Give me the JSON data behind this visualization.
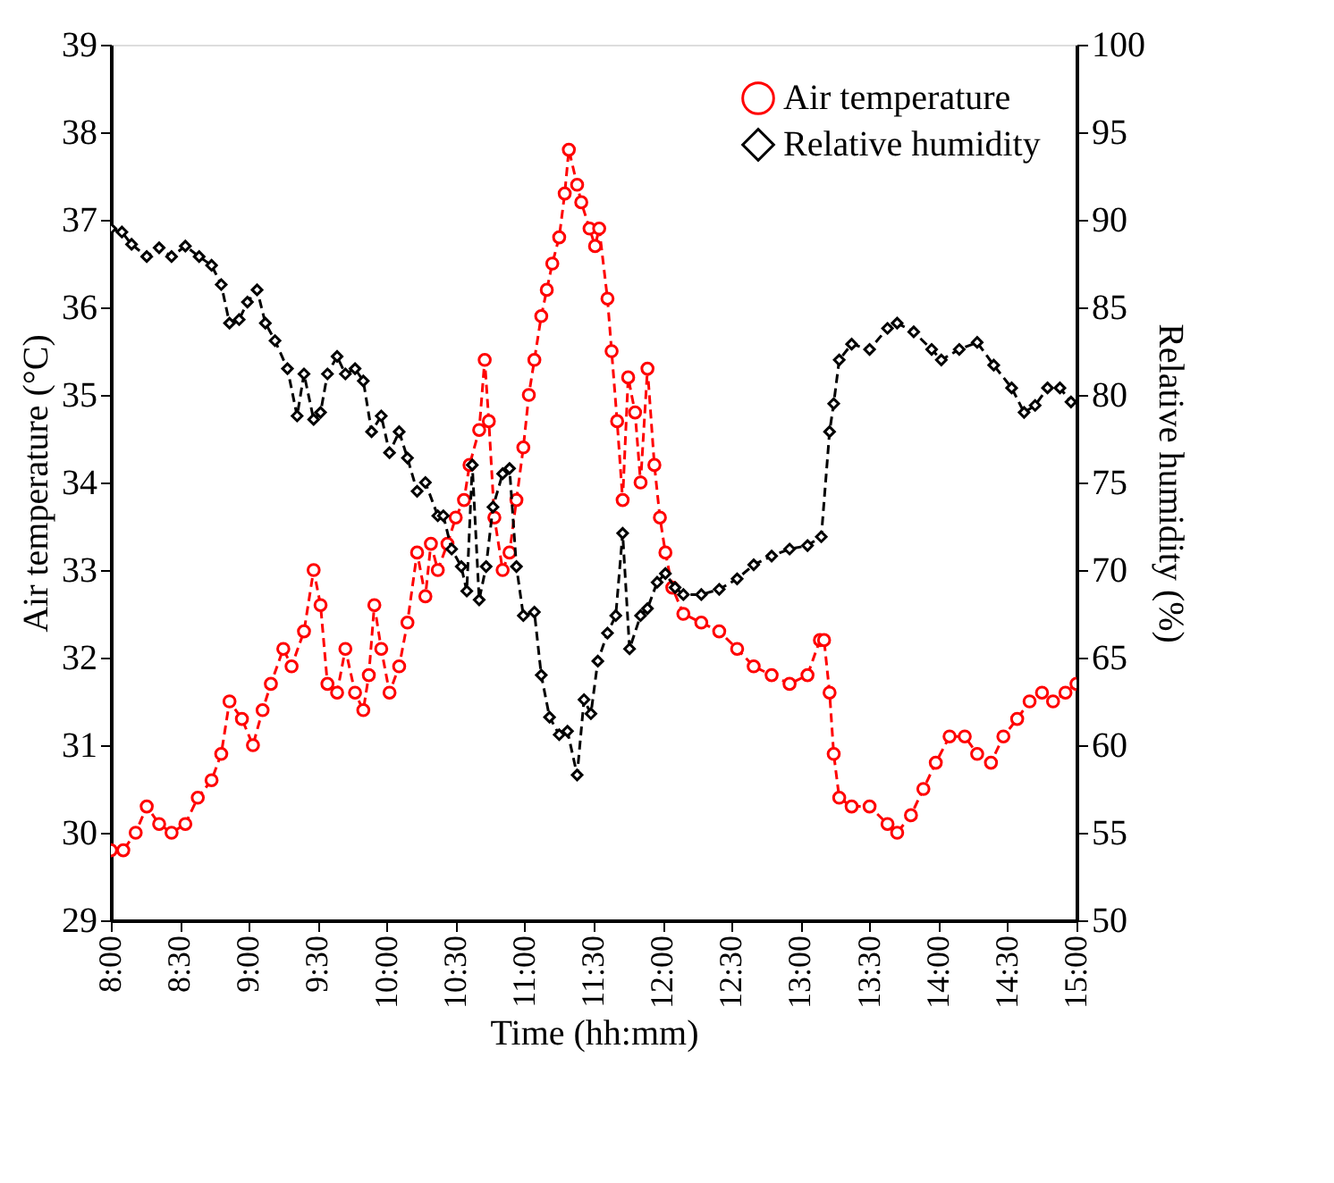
{
  "chart_data": {
    "type": "line",
    "xlabel": "Time (hh:mm)",
    "ylabel": "Air temperature (°C)",
    "y2label": "Relative humidity (%)",
    "xlim": [
      8,
      15
    ],
    "xticks": [
      {
        "value": 8,
        "label": "8:00"
      },
      {
        "value": 8.5,
        "label": "8:30"
      },
      {
        "value": 9,
        "label": "9:00"
      },
      {
        "value": 9.5,
        "label": "9:30"
      },
      {
        "value": 10,
        "label": "10:00"
      },
      {
        "value": 10.5,
        "label": "10:30"
      },
      {
        "value": 11,
        "label": "11:00"
      },
      {
        "value": 11.5,
        "label": "11:30"
      },
      {
        "value": 12,
        "label": "12:00"
      },
      {
        "value": 12.5,
        "label": "12:30"
      },
      {
        "value": 13,
        "label": "13:00"
      },
      {
        "value": 13.5,
        "label": "13:30"
      },
      {
        "value": 14,
        "label": "14:00"
      },
      {
        "value": 14.5,
        "label": "14:30"
      },
      {
        "value": 15,
        "label": "15:00"
      }
    ],
    "ylim": [
      29,
      39
    ],
    "yticks": [
      29,
      30,
      31,
      32,
      33,
      34,
      35,
      36,
      37,
      38,
      39
    ],
    "y2lim": [
      50,
      100
    ],
    "y2ticks": [
      50,
      55,
      60,
      65,
      70,
      75,
      80,
      85,
      90,
      95,
      100
    ],
    "grid": false,
    "legend": "top right",
    "line_style": "dashed",
    "series": [
      {
        "name": "Air temperature",
        "color": "#ff0000",
        "marker": "circle",
        "axis": "y",
        "x": [
          8.0,
          8.09,
          8.18,
          8.26,
          8.35,
          8.44,
          8.54,
          8.63,
          8.73,
          8.8,
          8.86,
          8.95,
          9.03,
          9.1,
          9.16,
          9.25,
          9.31,
          9.4,
          9.47,
          9.52,
          9.57,
          9.64,
          9.7,
          9.77,
          9.83,
          9.87,
          9.91,
          9.96,
          10.02,
          10.09,
          10.15,
          10.22,
          10.28,
          10.32,
          10.37,
          10.44,
          10.5,
          10.56,
          10.6,
          10.67,
          10.71,
          10.74,
          10.78,
          10.84,
          10.89,
          10.94,
          10.99,
          11.03,
          11.07,
          11.12,
          11.16,
          11.2,
          11.25,
          11.29,
          11.32,
          11.38,
          11.41,
          11.47,
          11.51,
          11.54,
          11.6,
          11.63,
          11.67,
          11.71,
          11.75,
          11.8,
          11.84,
          11.89,
          11.94,
          11.98,
          12.02,
          12.07,
          12.15,
          12.28,
          12.41,
          12.54,
          12.66,
          12.79,
          12.92,
          13.05,
          13.14,
          13.17,
          13.21,
          13.24,
          13.28,
          13.37,
          13.5,
          13.63,
          13.7,
          13.8,
          13.89,
          13.98,
          14.08,
          14.19,
          14.28,
          14.38,
          14.47,
          14.57,
          14.66,
          14.75,
          14.83,
          14.92,
          15.0
        ],
        "values": [
          29.8,
          29.8,
          30.0,
          30.3,
          30.1,
          30.0,
          30.1,
          30.4,
          30.6,
          30.9,
          31.5,
          31.3,
          31.0,
          31.4,
          31.7,
          32.1,
          31.9,
          32.3,
          33.0,
          32.6,
          31.7,
          31.6,
          32.1,
          31.6,
          31.4,
          31.8,
          32.6,
          32.1,
          31.6,
          31.9,
          32.4,
          33.2,
          32.7,
          33.3,
          33.0,
          33.3,
          33.6,
          33.8,
          34.2,
          34.6,
          35.4,
          34.7,
          33.6,
          33.0,
          33.2,
          33.8,
          34.4,
          35.0,
          35.4,
          35.9,
          36.2,
          36.5,
          36.8,
          37.3,
          37.8,
          37.4,
          37.2,
          36.9,
          36.7,
          36.9,
          36.1,
          35.5,
          34.7,
          33.8,
          35.2,
          34.8,
          34.0,
          35.3,
          34.2,
          33.6,
          33.2,
          32.8,
          32.5,
          32.4,
          32.3,
          32.1,
          31.9,
          31.8,
          31.7,
          31.8,
          32.2,
          32.2,
          31.6,
          30.9,
          30.4,
          30.3,
          30.3,
          30.1,
          30.0,
          30.2,
          30.5,
          30.8,
          31.1,
          31.1,
          30.9,
          30.8,
          31.1,
          31.3,
          31.5,
          31.6,
          31.5,
          31.6,
          31.7
        ]
      },
      {
        "name": "Relative humidity",
        "color": "#000000",
        "marker": "diamond",
        "axis": "y2",
        "x": [
          8.0,
          8.08,
          8.15,
          8.26,
          8.35,
          8.44,
          8.54,
          8.64,
          8.73,
          8.8,
          8.86,
          8.93,
          8.99,
          9.06,
          9.12,
          9.19,
          9.28,
          9.35,
          9.4,
          9.47,
          9.52,
          9.57,
          9.64,
          9.7,
          9.77,
          9.83,
          9.89,
          9.96,
          10.02,
          10.09,
          10.15,
          10.22,
          10.28,
          10.37,
          10.41,
          10.47,
          10.54,
          10.58,
          10.62,
          10.67,
          10.72,
          10.77,
          10.84,
          10.89,
          10.94,
          10.99,
          11.07,
          11.12,
          11.18,
          11.25,
          11.31,
          11.38,
          11.43,
          11.48,
          11.53,
          11.6,
          11.66,
          11.71,
          11.76,
          11.84,
          11.89,
          11.96,
          12.02,
          12.09,
          12.15,
          12.28,
          12.41,
          12.54,
          12.66,
          12.79,
          12.92,
          13.05,
          13.15,
          13.21,
          13.24,
          13.28,
          13.37,
          13.5,
          13.63,
          13.7,
          13.82,
          13.95,
          14.02,
          14.15,
          14.28,
          14.4,
          14.53,
          14.62,
          14.7,
          14.79,
          14.88,
          14.96
        ],
        "values": [
          89.5,
          89.3,
          88.6,
          87.9,
          88.4,
          87.9,
          88.5,
          87.9,
          87.4,
          86.3,
          84.1,
          84.3,
          85.3,
          86.0,
          84.1,
          83.1,
          81.5,
          78.8,
          81.2,
          78.6,
          79.0,
          81.2,
          82.2,
          81.2,
          81.5,
          80.8,
          77.9,
          78.8,
          76.7,
          77.9,
          76.4,
          74.5,
          75.0,
          73.1,
          73.1,
          71.2,
          70.2,
          68.8,
          76.0,
          68.3,
          70.2,
          73.6,
          75.5,
          75.8,
          70.2,
          67.4,
          67.6,
          64.0,
          61.6,
          60.6,
          60.8,
          58.3,
          62.6,
          61.8,
          64.8,
          66.4,
          67.4,
          72.1,
          65.5,
          67.4,
          67.8,
          69.3,
          69.8,
          69.0,
          68.6,
          68.6,
          68.9,
          69.5,
          70.3,
          70.8,
          71.2,
          71.4,
          71.9,
          77.9,
          79.5,
          82.0,
          82.9,
          82.6,
          83.8,
          84.1,
          83.6,
          82.6,
          82.0,
          82.6,
          83.0,
          81.7,
          80.4,
          79.0,
          79.4,
          80.4,
          80.4,
          79.6
        ]
      }
    ]
  }
}
